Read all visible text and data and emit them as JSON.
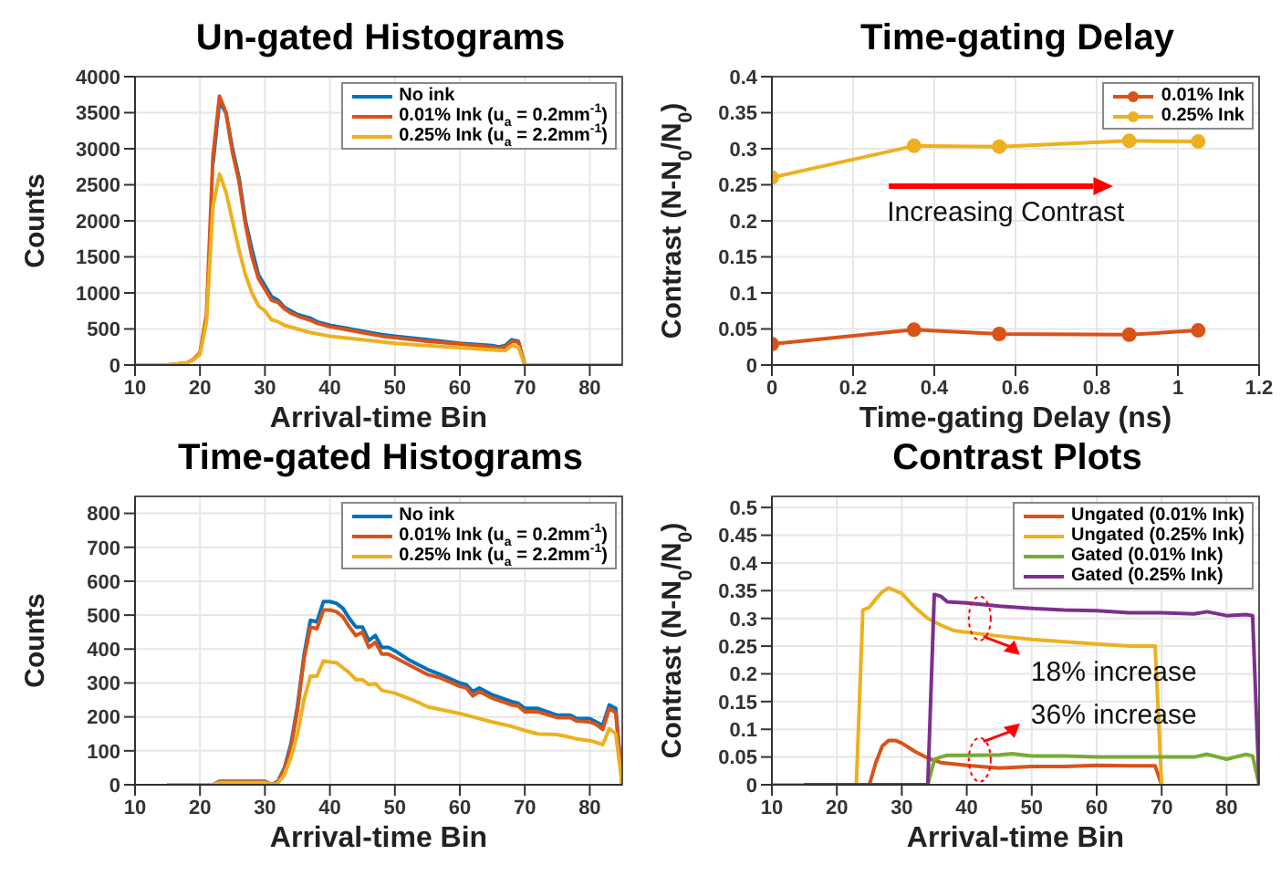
{
  "chart_data": [
    {
      "type": "line",
      "title": "Un-gated Histograms",
      "xlabel": "Arrival-time Bin",
      "ylabel": "Counts",
      "xlim": [
        10,
        85
      ],
      "xticks": [
        10,
        20,
        30,
        40,
        50,
        60,
        70,
        80
      ],
      "ylim": [
        0,
        4000
      ],
      "yticks": [
        0,
        500,
        1000,
        1500,
        2000,
        2500,
        3000,
        3500,
        4000
      ],
      "grid": true,
      "legend": "top right",
      "series": [
        {
          "name": "No ink",
          "color": "#0072bd",
          "x": [
            22,
            23,
            24,
            25,
            26,
            27,
            28,
            29,
            30,
            31,
            32,
            33,
            34,
            35,
            37,
            38,
            40,
            42,
            45,
            48,
            50,
            55,
            60,
            65,
            66,
            67,
            68,
            69,
            70
          ],
          "values": [
            2800,
            3650,
            3500,
            3000,
            2600,
            2000,
            1600,
            1250,
            1100,
            950,
            900,
            800,
            750,
            700,
            650,
            600,
            550,
            520,
            470,
            420,
            400,
            350,
            300,
            270,
            250,
            270,
            350,
            330,
            0
          ]
        },
        {
          "name": "0.01% Ink (u$_{a}$ = 0.2mm$^{-1}$)",
          "color": "#d95319",
          "x": [
            10,
            15,
            18,
            19,
            20,
            21,
            22,
            23,
            24,
            25,
            26,
            27,
            28,
            29,
            30,
            31,
            32,
            33,
            34,
            35,
            37,
            38,
            40,
            42,
            45,
            48,
            50,
            55,
            60,
            65,
            66,
            67,
            68,
            69,
            70,
            75,
            85
          ],
          "values": [
            0,
            0,
            30,
            80,
            170,
            700,
            2900,
            3730,
            3500,
            2950,
            2550,
            1950,
            1500,
            1200,
            1050,
            900,
            870,
            780,
            720,
            680,
            620,
            580,
            530,
            500,
            450,
            400,
            380,
            330,
            290,
            250,
            230,
            250,
            330,
            320,
            0,
            0,
            0
          ]
        },
        {
          "name": "0.25% Ink (u$_{a}$ = 2.2mm$^{-1}$)",
          "color": "#edb120",
          "x": [
            10,
            15,
            18,
            19,
            20,
            21,
            22,
            23,
            24,
            25,
            26,
            27,
            28,
            29,
            30,
            31,
            32,
            33,
            35,
            37,
            40,
            45,
            50,
            55,
            60,
            65,
            67,
            68,
            69,
            70,
            75,
            85
          ],
          "values": [
            0,
            0,
            30,
            70,
            150,
            600,
            2200,
            2650,
            2400,
            2000,
            1600,
            1250,
            1000,
            820,
            750,
            630,
            600,
            550,
            500,
            450,
            400,
            350,
            300,
            270,
            240,
            210,
            200,
            270,
            250,
            0,
            0,
            0
          ]
        }
      ]
    },
    {
      "type": "line",
      "title": "Time-gating Delay",
      "xlabel": "Time-gating Delay (ns)",
      "ylabel": "Contrast (N-N$_{0}$/N$_{0}$)",
      "xlim": [
        0,
        1.2
      ],
      "xticks": [
        0,
        0.2,
        0.4,
        0.6,
        0.8,
        1,
        1.2
      ],
      "ylim": [
        0,
        0.4
      ],
      "yticks": [
        0,
        0.05,
        0.1,
        0.15,
        0.2,
        0.25,
        0.3,
        0.35,
        0.4
      ],
      "grid": true,
      "legend": "top right",
      "marker": "circle",
      "annotations": [
        "Increasing Contrast"
      ],
      "series": [
        {
          "name": "0.01% Ink",
          "color": "#d95319",
          "x": [
            0,
            0.35,
            0.56,
            0.88,
            1.05
          ],
          "values": [
            0.029,
            0.049,
            0.043,
            0.042,
            0.048
          ]
        },
        {
          "name": "0.25% Ink",
          "color": "#edb120",
          "x": [
            0,
            0.35,
            0.56,
            0.88,
            1.05
          ],
          "values": [
            0.26,
            0.304,
            0.303,
            0.311,
            0.31
          ]
        }
      ]
    },
    {
      "type": "line",
      "title": "Time-gated Histograms",
      "xlabel": "Arrival-time Bin",
      "ylabel": "Counts",
      "xlim": [
        10,
        85
      ],
      "xticks": [
        10,
        20,
        30,
        40,
        50,
        60,
        70,
        80
      ],
      "ylim": [
        0,
        850
      ],
      "yticks": [
        0,
        100,
        200,
        300,
        400,
        500,
        600,
        700,
        800
      ],
      "grid": true,
      "legend": "top right",
      "series": [
        {
          "name": "No ink",
          "color": "#0072bd",
          "x": [
            15,
            22,
            23,
            30,
            31,
            32,
            33,
            34,
            35,
            36,
            37,
            38,
            39,
            40,
            41,
            42,
            43,
            44,
            45,
            46,
            47,
            48,
            49,
            50,
            52,
            53,
            55,
            57,
            60,
            61,
            62,
            63,
            65,
            68,
            69,
            70,
            72,
            75,
            77,
            78,
            80,
            81,
            82,
            83,
            84,
            85
          ],
          "values": [
            0,
            0,
            10,
            10,
            0,
            10,
            50,
            120,
            230,
            380,
            485,
            480,
            540,
            540,
            535,
            520,
            490,
            465,
            465,
            425,
            440,
            405,
            405,
            395,
            370,
            360,
            340,
            325,
            300,
            295,
            275,
            285,
            265,
            245,
            240,
            225,
            225,
            205,
            205,
            195,
            195,
            185,
            175,
            235,
            225,
            0
          ]
        },
        {
          "name": "0.01% Ink (u$_{a}$ = 0.2mm$^{-1}$)",
          "color": "#d95319",
          "x": [
            15,
            22,
            23,
            30,
            31,
            32,
            33,
            34,
            35,
            36,
            37,
            38,
            39,
            40,
            41,
            42,
            43,
            44,
            45,
            46,
            47,
            48,
            49,
            50,
            52,
            53,
            55,
            57,
            60,
            61,
            62,
            63,
            65,
            68,
            69,
            70,
            72,
            75,
            77,
            78,
            80,
            81,
            82,
            83,
            84,
            85
          ],
          "values": [
            0,
            0,
            8,
            8,
            0,
            8,
            45,
            110,
            220,
            370,
            465,
            460,
            515,
            515,
            510,
            495,
            465,
            440,
            450,
            405,
            420,
            385,
            385,
            375,
            355,
            345,
            325,
            315,
            290,
            285,
            262,
            275,
            255,
            235,
            232,
            215,
            215,
            198,
            198,
            188,
            185,
            178,
            163,
            225,
            212,
            0
          ]
        },
        {
          "name": "0.25% Ink (u$_{a}$ = 2.2mm$^{-1}$)",
          "color": "#edb120",
          "x": [
            15,
            22,
            23,
            30,
            31,
            32,
            33,
            34,
            35,
            36,
            37,
            38,
            39,
            40,
            41,
            42,
            43,
            44,
            45,
            46,
            47,
            48,
            50,
            52,
            53,
            55,
            57,
            60,
            62,
            65,
            68,
            70,
            72,
            75,
            77,
            78,
            80,
            81,
            82,
            83,
            84,
            85
          ],
          "values": [
            0,
            0,
            6,
            6,
            0,
            5,
            30,
            80,
            150,
            250,
            320,
            320,
            365,
            362,
            360,
            345,
            330,
            310,
            310,
            295,
            298,
            278,
            270,
            255,
            248,
            230,
            222,
            210,
            200,
            185,
            172,
            160,
            150,
            148,
            140,
            135,
            130,
            125,
            118,
            165,
            150,
            0
          ]
        }
      ]
    },
    {
      "type": "line",
      "title": "Contrast Plots",
      "xlabel": "Arrival-time Bin",
      "ylabel": "Contrast (N-N$_{0}$/N$_{0}$)",
      "xlim": [
        10,
        85
      ],
      "xticks": [
        10,
        20,
        30,
        40,
        50,
        60,
        70,
        80
      ],
      "ylim": [
        0,
        0.52
      ],
      "yticks": [
        0,
        0.05,
        0.1,
        0.15,
        0.2,
        0.25,
        0.3,
        0.35,
        0.4,
        0.45,
        0.5
      ],
      "grid": true,
      "legend": "top right",
      "annotations": [
        {
          "text": "18% increase",
          "x": 42,
          "y": 0.3
        },
        {
          "text": "36% increase",
          "x": 42,
          "y": 0.045
        }
      ],
      "series": [
        {
          "name": "Ungated (0.01% Ink)",
          "color": "#d95319",
          "x": [
            10,
            25,
            26,
            27,
            28,
            29,
            30,
            32,
            34,
            36,
            40,
            45,
            50,
            55,
            60,
            65,
            69,
            70
          ],
          "values": [
            0,
            0,
            0.04,
            0.07,
            0.08,
            0.08,
            0.075,
            0.06,
            0.048,
            0.04,
            0.035,
            0.03,
            0.033,
            0.033,
            0.035,
            0.034,
            0.034,
            0
          ]
        },
        {
          "name": "Ungated (0.25% Ink)",
          "color": "#edb120",
          "x": [
            10,
            23,
            24,
            25,
            26,
            27,
            28,
            29,
            30,
            32,
            34,
            36,
            38,
            40,
            45,
            50,
            55,
            60,
            65,
            69,
            70
          ],
          "values": [
            0,
            0,
            0.315,
            0.32,
            0.335,
            0.348,
            0.355,
            0.35,
            0.345,
            0.32,
            0.3,
            0.288,
            0.278,
            0.275,
            0.268,
            0.262,
            0.258,
            0.254,
            0.25,
            0.25,
            0
          ]
        },
        {
          "name": "Gated (0.01% Ink)",
          "color": "#77ac30",
          "x": [
            15,
            34,
            35,
            36,
            37,
            40,
            45,
            47,
            50,
            55,
            60,
            65,
            70,
            75,
            77,
            80,
            83,
            84,
            85
          ],
          "values": [
            0,
            0,
            0.045,
            0.05,
            0.053,
            0.053,
            0.054,
            0.056,
            0.052,
            0.052,
            0.05,
            0.05,
            0.05,
            0.05,
            0.055,
            0.046,
            0.055,
            0.052,
            0
          ]
        },
        {
          "name": "Gated (0.25% Ink)",
          "color": "#7e2f8e",
          "x": [
            15,
            34,
            35,
            36,
            37,
            40,
            45,
            50,
            55,
            60,
            65,
            70,
            75,
            77,
            80,
            83,
            84,
            85
          ],
          "values": [
            0,
            0,
            0.343,
            0.34,
            0.33,
            0.328,
            0.322,
            0.318,
            0.315,
            0.314,
            0.31,
            0.31,
            0.308,
            0.312,
            0.305,
            0.307,
            0.305,
            0
          ]
        }
      ]
    }
  ]
}
